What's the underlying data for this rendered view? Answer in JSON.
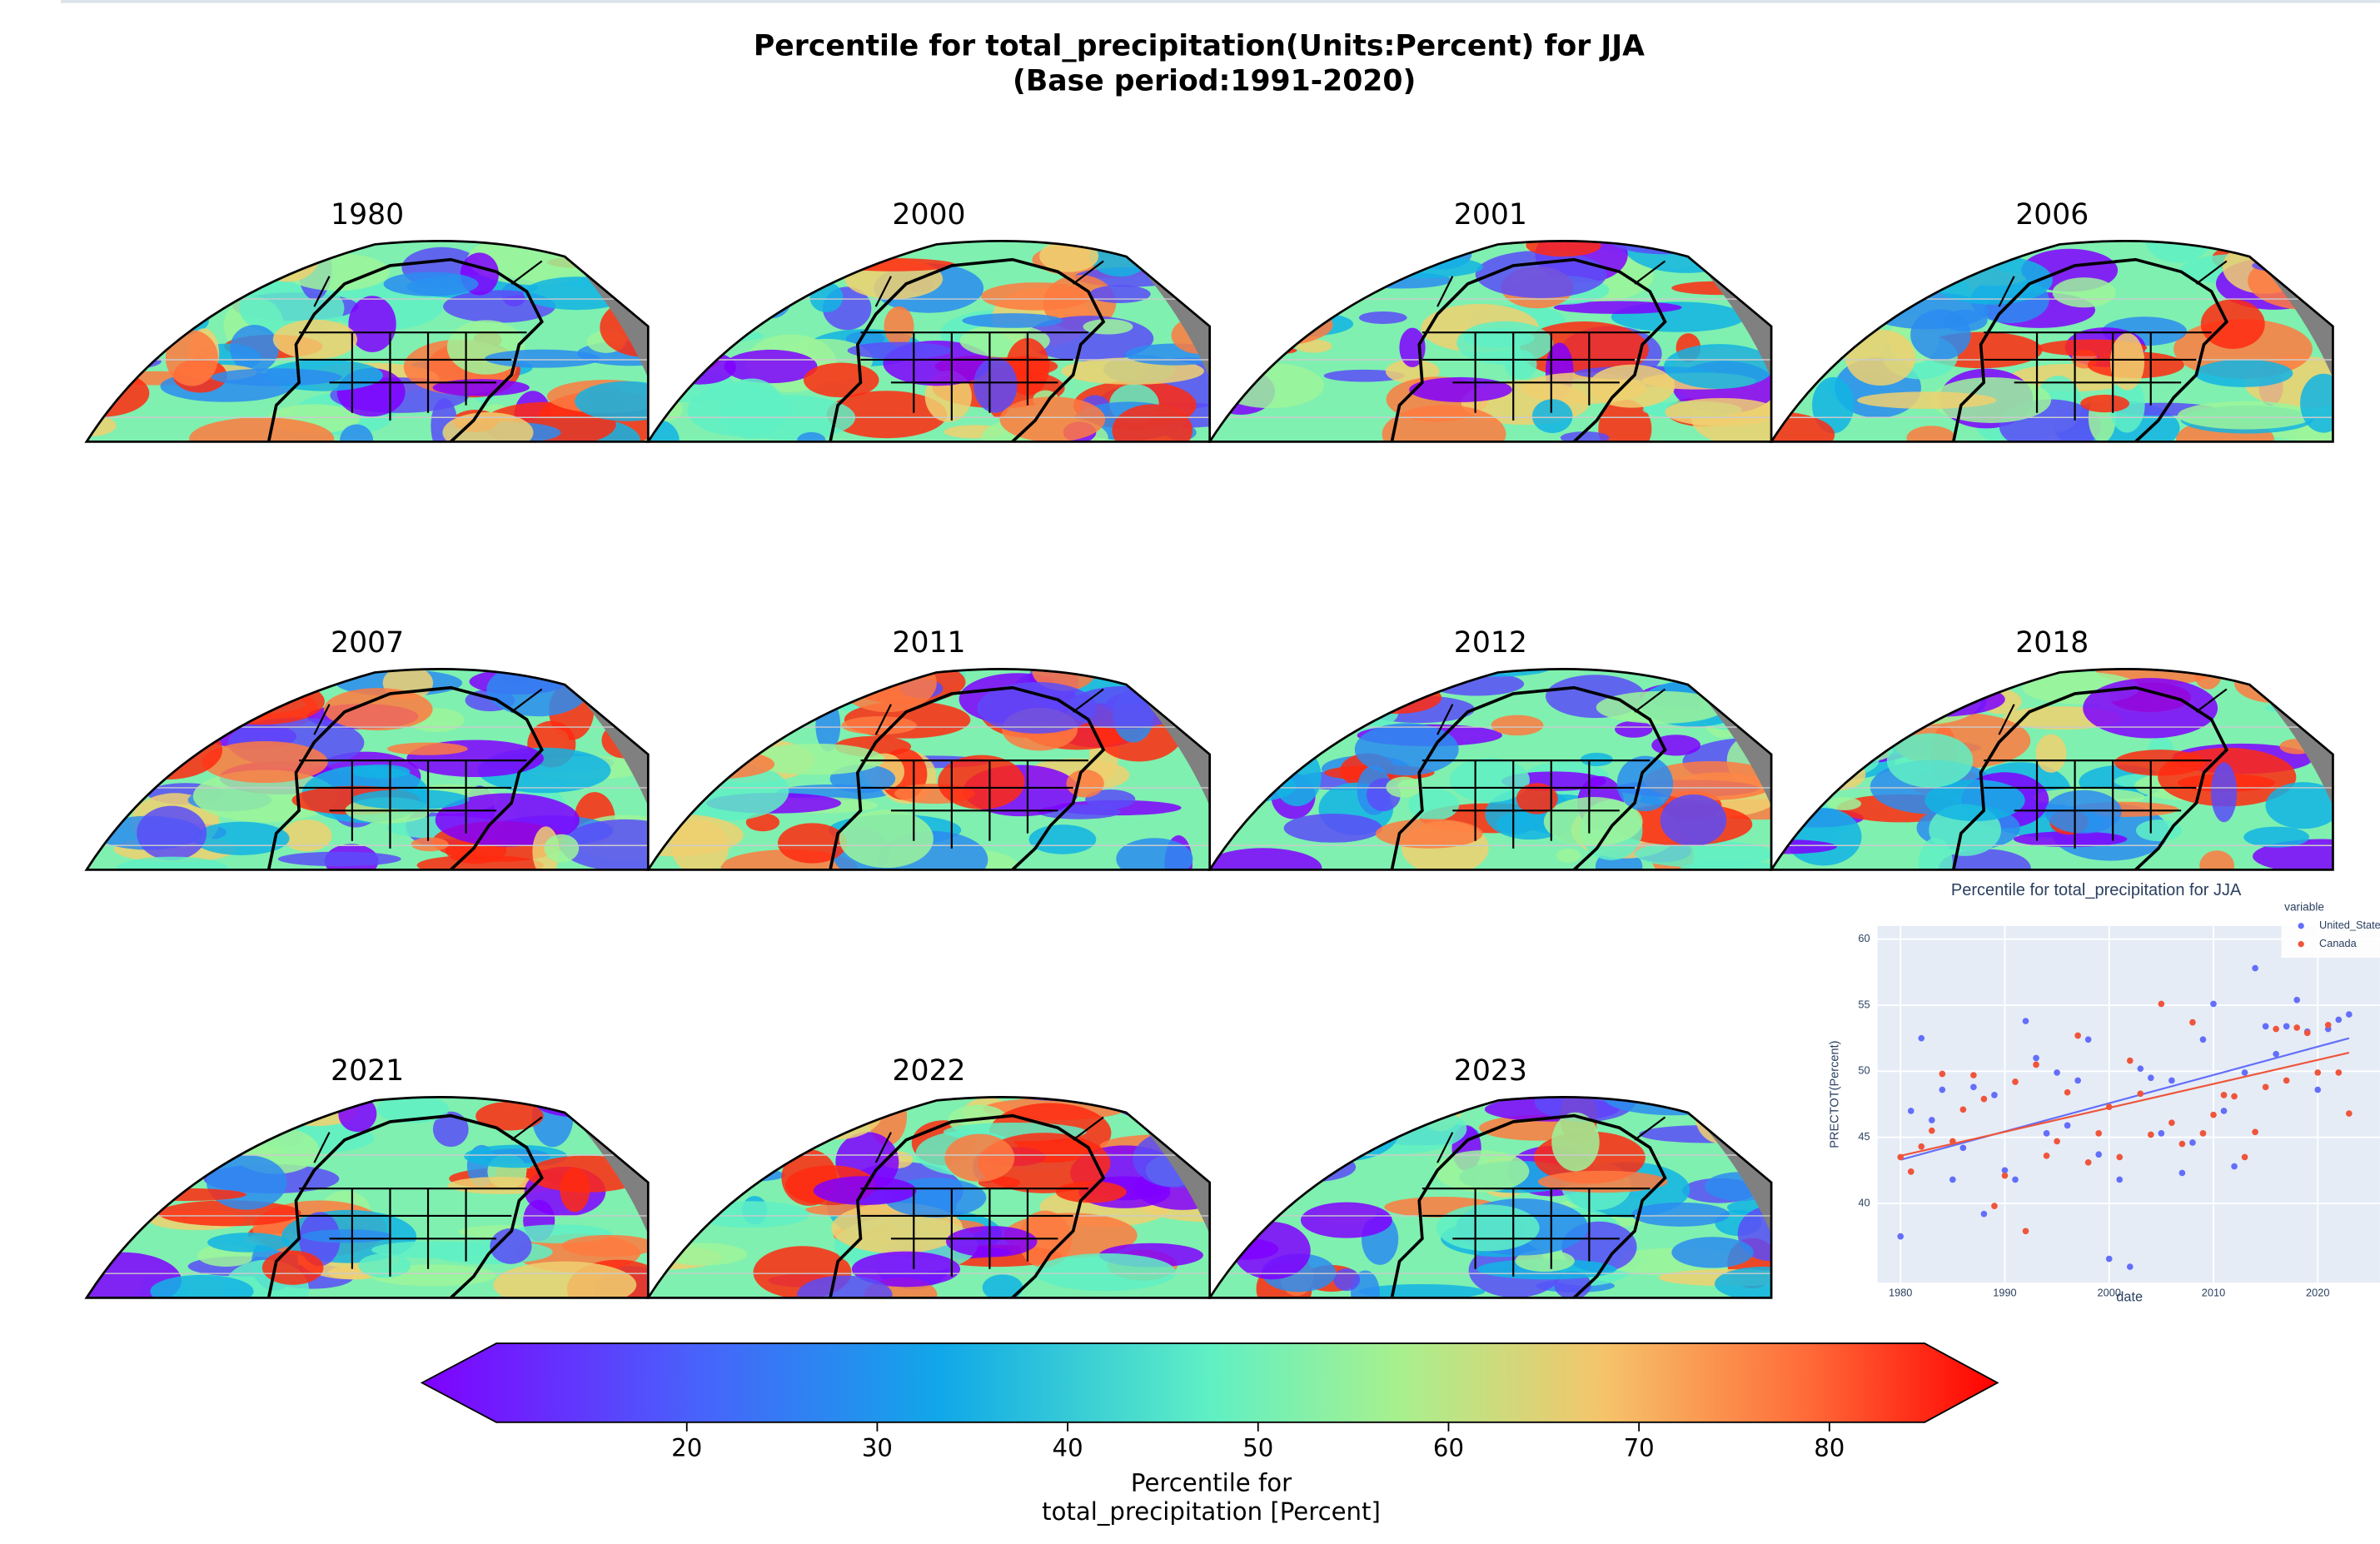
{
  "header": {
    "title": "Percentile for total_precipitation(Units:Percent) for JJA",
    "subtitle": "(Base period:1991-2020)"
  },
  "panels": [
    {
      "title": "1980"
    },
    {
      "title": "2000"
    },
    {
      "title": "2001"
    },
    {
      "title": "2006"
    },
    {
      "title": "2007"
    },
    {
      "title": "2011"
    },
    {
      "title": "2012"
    },
    {
      "title": "2018"
    },
    {
      "title": "2021"
    },
    {
      "title": "2022"
    },
    {
      "title": "2023"
    }
  ],
  "colorbar": {
    "lim": [
      10,
      85
    ],
    "ticks": [
      20,
      30,
      40,
      50,
      60,
      70,
      80
    ],
    "label_lines": [
      "Percentile for",
      "total_precipitation [Percent]"
    ]
  },
  "chart_data": {
    "type": "scatter",
    "title": "Percentile for total_precipitation for JJA",
    "x_label": "date",
    "y_label": "PRECTOT(Percent)",
    "legend_title": "variable",
    "legend": "top-right",
    "grid": true,
    "x": [
      1980,
      1981,
      1982,
      1983,
      1984,
      1985,
      1986,
      1987,
      1988,
      1989,
      1990,
      1991,
      1992,
      1993,
      1994,
      1995,
      1996,
      1997,
      1998,
      1999,
      2000,
      2001,
      2002,
      2003,
      2004,
      2005,
      2006,
      2007,
      2008,
      2009,
      2010,
      2011,
      2012,
      2013,
      2014,
      2015,
      2016,
      2017,
      2018,
      2019,
      2020,
      2021,
      2022,
      2023
    ],
    "xlim": [
      1977.8,
      2026
    ],
    "xticks": [
      1980,
      1990,
      2000,
      2010,
      2020
    ],
    "ylim": [
      34,
      61
    ],
    "yticks": [
      40,
      45,
      50,
      55,
      60
    ],
    "series": [
      {
        "name": "United_States",
        "color": "#636efa",
        "values": [
          37.5,
          47,
          52.5,
          46.3,
          48.6,
          41.8,
          44.2,
          48.8,
          39.2,
          48.2,
          42.5,
          41.8,
          53.8,
          51,
          45.3,
          49.9,
          45.9,
          49.3,
          52.4,
          43.7,
          35.8,
          41.8,
          35.2,
          50.2,
          49.5,
          45.3,
          49.3,
          42.3,
          44.6,
          52.4,
          55.1,
          47,
          42.8,
          49.9,
          57.8,
          53.4,
          51.3,
          53.4,
          55.4,
          53,
          48.6,
          53.2,
          53.9,
          54.3
        ],
        "trend": {
          "x": [
            1980,
            2023
          ],
          "values": [
            43.3,
            52.5
          ]
        }
      },
      {
        "name": "Canada",
        "color": "#ef553b",
        "values": [
          43.5,
          42.4,
          44.3,
          45.5,
          49.8,
          44.7,
          47.1,
          49.7,
          47.9,
          39.8,
          42.1,
          49.2,
          37.9,
          50.5,
          43.6,
          44.7,
          48.4,
          52.7,
          43.1,
          45.3,
          47.3,
          43.5,
          50.8,
          48.3,
          45.2,
          55.1,
          46.1,
          44.5,
          53.7,
          45.3,
          46.7,
          48.2,
          48.1,
          43.5,
          45.4,
          48.8,
          53.2,
          49.3,
          53.3,
          52.9,
          49.9,
          53.5,
          49.9,
          46.8
        ],
        "trend": {
          "x": [
            1980,
            2023
          ],
          "values": [
            43.6,
            51.4
          ]
        }
      }
    ]
  }
}
